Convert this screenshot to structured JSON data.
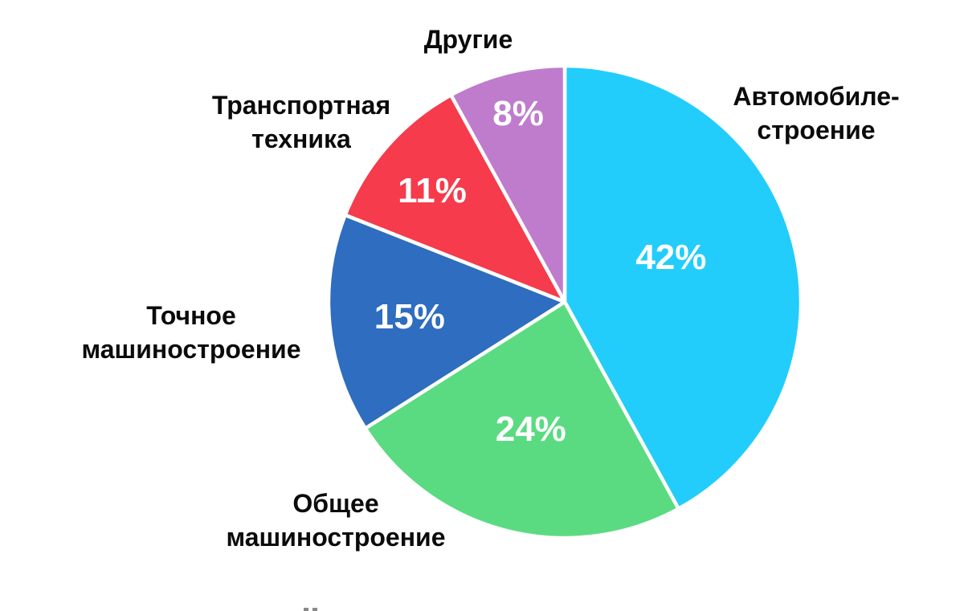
{
  "chart_data": {
    "type": "pie",
    "title": "",
    "start_at": "12-o'clock",
    "direction": "clockwise",
    "background": "#FFFFFF",
    "separator_color": "#FFFFFF",
    "value_label_color": "#FFFFFF",
    "category_label_color": "#0B0B0B",
    "slices": [
      {
        "label": "Автомобиле-строение",
        "label_lines": [
          "Автомобиле-",
          "строение"
        ],
        "value": 42,
        "value_label": "42%",
        "color": "#22CDFC"
      },
      {
        "label": "Общее машиностроение",
        "label_lines": [
          "Общее",
          "машиностроение"
        ],
        "value": 24,
        "value_label": "24%",
        "color": "#5BDB81"
      },
      {
        "label": "Точное машиностроение",
        "label_lines": [
          "Точное",
          "машиностроение"
        ],
        "value": 15,
        "value_label": "15%",
        "color": "#2E6DBF"
      },
      {
        "label": "Транспортная техника",
        "label_lines": [
          "Транспортная",
          "техника"
        ],
        "value": 11,
        "value_label": "11%",
        "color": "#F53B4C"
      },
      {
        "label": "Другие",
        "label_lines": [
          "Другие"
        ],
        "value": 8,
        "value_label": "8%",
        "color": "#BF7CCC"
      }
    ]
  }
}
